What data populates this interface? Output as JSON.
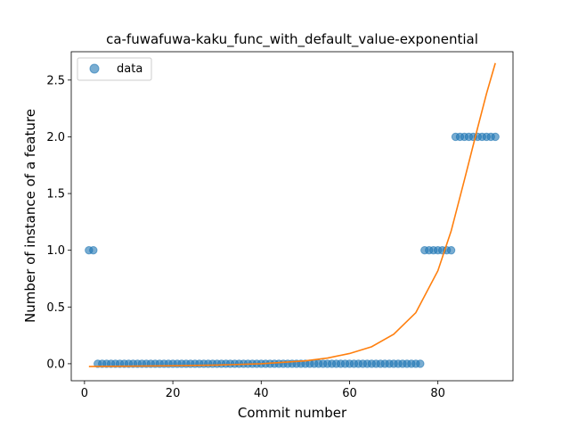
{
  "chart_data": {
    "type": "scatter",
    "title": "ca-fuwafuwa-kaku_func_with_default_value-exponential",
    "xlabel": "Commit number",
    "ylabel": "Number of instance of a feature",
    "xlim": [
      -3,
      97
    ],
    "ylim": [
      -0.15,
      2.75
    ],
    "xticks": [
      0,
      20,
      40,
      60,
      80
    ],
    "xtick_labels": [
      "0",
      "20",
      "40",
      "60",
      "80"
    ],
    "yticks": [
      0.0,
      0.5,
      1.0,
      1.5,
      2.0,
      2.5
    ],
    "ytick_labels": [
      "0.0",
      "0.5",
      "1.0",
      "1.5",
      "2.0",
      "2.5"
    ],
    "grid": false,
    "legend": {
      "position": "top-left",
      "entries": [
        "data"
      ]
    },
    "colors": {
      "data": "#1f77b4",
      "fit": "#ff7f0e"
    },
    "series": [
      {
        "name": "data",
        "kind": "scatter",
        "x": [
          1,
          2,
          3,
          4,
          5,
          6,
          7,
          8,
          9,
          10,
          11,
          12,
          13,
          14,
          15,
          16,
          17,
          18,
          19,
          20,
          21,
          22,
          23,
          24,
          25,
          26,
          27,
          28,
          29,
          30,
          31,
          32,
          33,
          34,
          35,
          36,
          37,
          38,
          39,
          40,
          41,
          42,
          43,
          44,
          45,
          46,
          47,
          48,
          49,
          50,
          51,
          52,
          53,
          54,
          55,
          56,
          57,
          58,
          59,
          60,
          61,
          62,
          63,
          64,
          65,
          66,
          67,
          68,
          69,
          70,
          71,
          72,
          73,
          74,
          75,
          76,
          77,
          78,
          79,
          80,
          81,
          82,
          83,
          84,
          85,
          86,
          87,
          88,
          89,
          90,
          91,
          92,
          93
        ],
        "y": [
          1,
          1,
          0,
          0,
          0,
          0,
          0,
          0,
          0,
          0,
          0,
          0,
          0,
          0,
          0,
          0,
          0,
          0,
          0,
          0,
          0,
          0,
          0,
          0,
          0,
          0,
          0,
          0,
          0,
          0,
          0,
          0,
          0,
          0,
          0,
          0,
          0,
          0,
          0,
          0,
          0,
          0,
          0,
          0,
          0,
          0,
          0,
          0,
          0,
          0,
          0,
          0,
          0,
          0,
          0,
          0,
          0,
          0,
          0,
          0,
          0,
          0,
          0,
          0,
          0,
          0,
          0,
          0,
          0,
          0,
          0,
          0,
          0,
          0,
          0,
          0,
          1,
          1,
          1,
          1,
          1,
          1,
          1,
          2,
          2,
          2,
          2,
          2,
          2,
          2,
          2,
          2,
          2
        ]
      },
      {
        "kind": "line",
        "x": [
          1,
          10,
          20,
          30,
          40,
          50,
          55,
          60,
          65,
          70,
          75,
          80,
          83,
          86,
          89,
          91,
          93
        ],
        "y": [
          -0.025,
          -0.022,
          -0.018,
          -0.012,
          0.0,
          0.025,
          0.05,
          0.09,
          0.15,
          0.26,
          0.45,
          0.82,
          1.17,
          1.62,
          2.08,
          2.38,
          2.65
        ]
      }
    ]
  }
}
